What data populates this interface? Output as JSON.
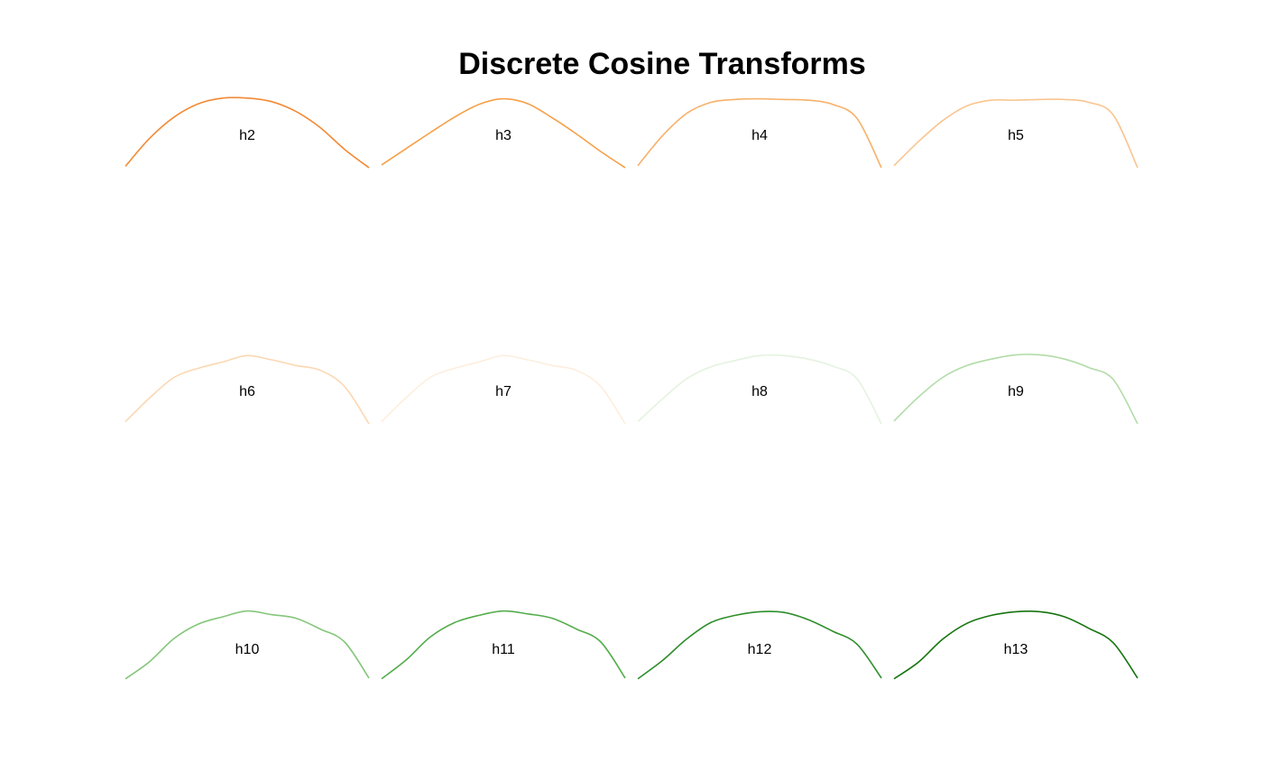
{
  "title": "Discrete Cosine Transforms",
  "chart_data": {
    "type": "line",
    "title": "Discrete Cosine Transforms",
    "xlabel": "",
    "ylabel": "",
    "axes_visible": false,
    "grid": false,
    "x": [
      0,
      0.1,
      0.2,
      0.3,
      0.4,
      0.5,
      0.6,
      0.7,
      0.8,
      0.9,
      1.0
    ],
    "ylim": [
      0,
      1
    ],
    "panels": [
      {
        "label": "h2",
        "color": "#f28a36",
        "values": [
          0.02,
          0.42,
          0.72,
          0.91,
          0.99,
          0.99,
          0.94,
          0.8,
          0.57,
          0.26,
          0.0
        ]
      },
      {
        "label": "h3",
        "color": "#f5a048",
        "values": [
          0.04,
          0.27,
          0.5,
          0.72,
          0.9,
          0.98,
          0.91,
          0.71,
          0.48,
          0.23,
          0.0
        ]
      },
      {
        "label": "h4",
        "color": "#f7b16a",
        "values": [
          0.03,
          0.45,
          0.77,
          0.93,
          0.97,
          0.98,
          0.97,
          0.96,
          0.9,
          0.7,
          0.0
        ]
      },
      {
        "label": "h5",
        "color": "#f9c590",
        "values": [
          0.03,
          0.37,
          0.67,
          0.88,
          0.96,
          0.96,
          0.97,
          0.97,
          0.93,
          0.75,
          0.0
        ]
      },
      {
        "label": "h6",
        "color": "#fbd8b2",
        "values": [
          0.03,
          0.37,
          0.66,
          0.79,
          0.88,
          0.97,
          0.91,
          0.83,
          0.76,
          0.53,
          0.0
        ]
      },
      {
        "label": "h7",
        "color": "#fdeedd",
        "values": [
          0.03,
          0.37,
          0.66,
          0.79,
          0.88,
          0.97,
          0.91,
          0.83,
          0.76,
          0.53,
          0.0
        ]
      },
      {
        "label": "h8",
        "color": "#e4f3df",
        "values": [
          0.03,
          0.35,
          0.64,
          0.81,
          0.9,
          0.97,
          0.97,
          0.92,
          0.82,
          0.64,
          0.0
        ]
      },
      {
        "label": "h9",
        "color": "#b1dca7",
        "values": [
          0.04,
          0.38,
          0.66,
          0.83,
          0.92,
          0.98,
          0.98,
          0.92,
          0.8,
          0.63,
          0.0
        ]
      },
      {
        "label": "h10",
        "color": "#84c67a",
        "values": [
          0.04,
          0.28,
          0.6,
          0.8,
          0.9,
          0.98,
          0.93,
          0.88,
          0.73,
          0.55,
          0.05
        ]
      },
      {
        "label": "h11",
        "color": "#54ac4c",
        "values": [
          0.04,
          0.3,
          0.62,
          0.82,
          0.92,
          0.98,
          0.94,
          0.88,
          0.73,
          0.55,
          0.05
        ]
      },
      {
        "label": "h12",
        "color": "#2e8e2b",
        "values": [
          0.04,
          0.29,
          0.59,
          0.82,
          0.92,
          0.97,
          0.96,
          0.86,
          0.7,
          0.52,
          0.05
        ]
      },
      {
        "label": "h13",
        "color": "#16740f",
        "values": [
          0.04,
          0.27,
          0.59,
          0.81,
          0.92,
          0.97,
          0.97,
          0.9,
          0.74,
          0.54,
          0.05
        ]
      }
    ]
  }
}
